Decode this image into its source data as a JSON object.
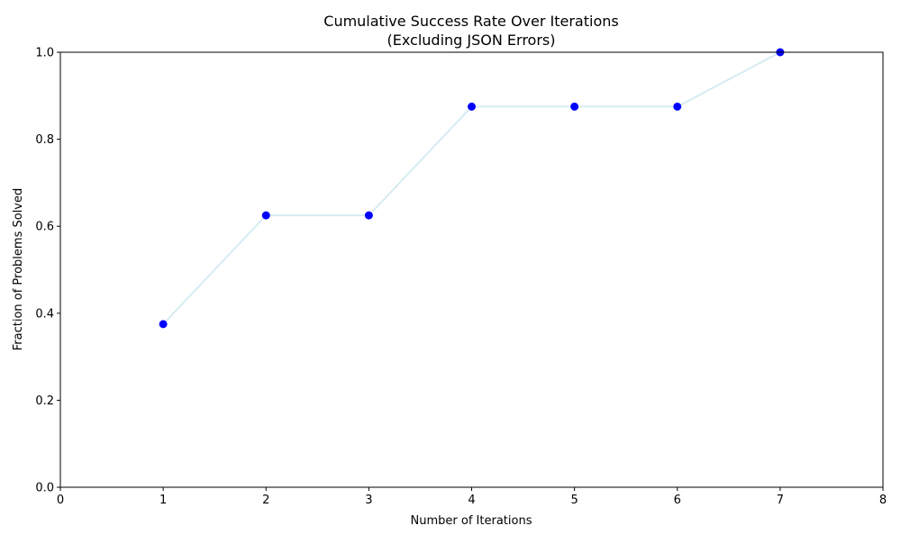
{
  "chart_data": {
    "type": "line",
    "title": "Cumulative Success Rate Over Iterations",
    "subtitle": "(Excluding JSON Errors)",
    "xlabel": "Number of Iterations",
    "ylabel": "Fraction of Problems Solved",
    "xlim": [
      0,
      8
    ],
    "ylim": [
      0,
      1
    ],
    "xticks": [
      0,
      1,
      2,
      3,
      4,
      5,
      6,
      7,
      8
    ],
    "xtick_labels": [
      "0",
      "1",
      "2",
      "3",
      "4",
      "5",
      "6",
      "7",
      "8"
    ],
    "yticks": [
      0,
      0.2,
      0.4,
      0.6,
      0.8,
      1.0
    ],
    "ytick_labels": [
      "0.0",
      "0.2",
      "0.4",
      "0.6",
      "0.8",
      "1.0"
    ],
    "grid": false,
    "series": [
      {
        "x": [
          1,
          2,
          3,
          4,
          5,
          6,
          7
        ],
        "y": [
          0.375,
          0.625,
          0.625,
          0.875,
          0.875,
          0.875,
          1.0
        ],
        "line_color": "#add8e6",
        "marker_color": "#0000ff",
        "line_alpha": 0.5
      }
    ]
  }
}
